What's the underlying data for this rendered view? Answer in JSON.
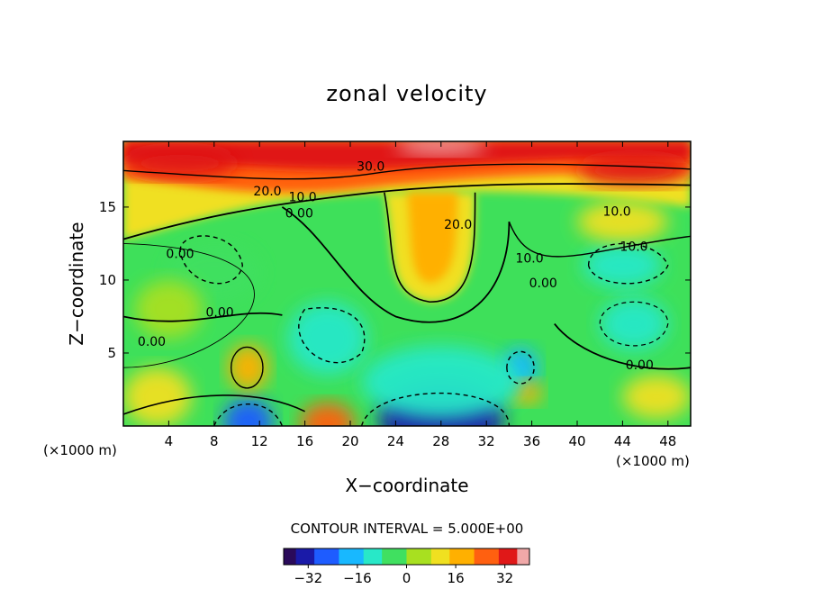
{
  "chart_data": {
    "type": "heatmap",
    "title": "zonal velocity",
    "xlabel": "X−coordinate",
    "ylabel": "Z−coordinate",
    "x_unit_left": "(×1000 m)",
    "x_unit_right": "(×1000 m)",
    "xlim": [
      0,
      50
    ],
    "ylim": [
      0,
      19.5
    ],
    "xticks": [
      4,
      8,
      12,
      16,
      20,
      24,
      28,
      32,
      36,
      40,
      44,
      48
    ],
    "yticks": [
      5,
      10,
      15
    ],
    "grid": false,
    "contour_interval_text": "CONTOUR INTERVAL = 5.000E+00",
    "contour_interval": 5.0,
    "colorbar": {
      "min": -40,
      "max": 40,
      "ticks": [
        -32,
        -16,
        0,
        16,
        32
      ],
      "tick_labels": [
        "−32",
        "−16",
        "0",
        "16",
        "32"
      ],
      "colors": [
        "#2a0a5a",
        "#1a1aa8",
        "#1e5cff",
        "#18b8ff",
        "#28e8c8",
        "#40e060",
        "#a8e020",
        "#f0e020",
        "#ffb000",
        "#ff6010",
        "#e01818",
        "#f0a8a8"
      ]
    },
    "contour_labels": [
      {
        "text": "30.0",
        "x": 21.8,
        "y": 17.5
      },
      {
        "text": "20.0",
        "x": 12.7,
        "y": 15.8
      },
      {
        "text": "10.0",
        "x": 15.8,
        "y": 15.4
      },
      {
        "text": "0.00",
        "x": 15.5,
        "y": 14.3
      },
      {
        "text": "0.00",
        "x": 5.0,
        "y": 11.5
      },
      {
        "text": "20.0",
        "x": 29.5,
        "y": 13.5
      },
      {
        "text": "10.0",
        "x": 35.8,
        "y": 11.2
      },
      {
        "text": "0.00",
        "x": 37.0,
        "y": 9.5
      },
      {
        "text": "10.0",
        "x": 43.5,
        "y": 14.4
      },
      {
        "text": "10.0",
        "x": 45.0,
        "y": 12.0
      },
      {
        "text": "0.00",
        "x": 8.5,
        "y": 7.5
      },
      {
        "text": "0.00",
        "x": 2.5,
        "y": 5.5
      },
      {
        "text": "0.00",
        "x": 45.5,
        "y": 3.9
      }
    ],
    "features": [
      {
        "kind": "jet-core",
        "x": 28,
        "z": 19,
        "value": 38
      },
      {
        "kind": "upper-band",
        "x": 5,
        "z": 18,
        "value": 30
      },
      {
        "kind": "warm-tongue",
        "x": 27,
        "z": 11,
        "value": 24
      },
      {
        "kind": "min",
        "x": 28,
        "z": 0.5,
        "value": -30
      },
      {
        "kind": "min",
        "x": 11,
        "z": 0.3,
        "value": -26
      },
      {
        "kind": "min",
        "x": 35,
        "z": 4,
        "value": -16
      },
      {
        "kind": "max",
        "x": 11,
        "z": 4,
        "value": 16
      },
      {
        "kind": "max",
        "x": 18,
        "z": 0.2,
        "value": 22
      },
      {
        "kind": "max",
        "x": 35.5,
        "z": 2.3,
        "value": 16
      },
      {
        "kind": "min",
        "x": 44,
        "z": 11,
        "value": -9
      },
      {
        "kind": "min",
        "x": 45,
        "z": 7,
        "value": -10
      },
      {
        "kind": "min",
        "x": 18,
        "z": 6,
        "value": -9
      },
      {
        "kind": "min",
        "x": 8,
        "z": 10.5,
        "value": -6
      }
    ]
  }
}
